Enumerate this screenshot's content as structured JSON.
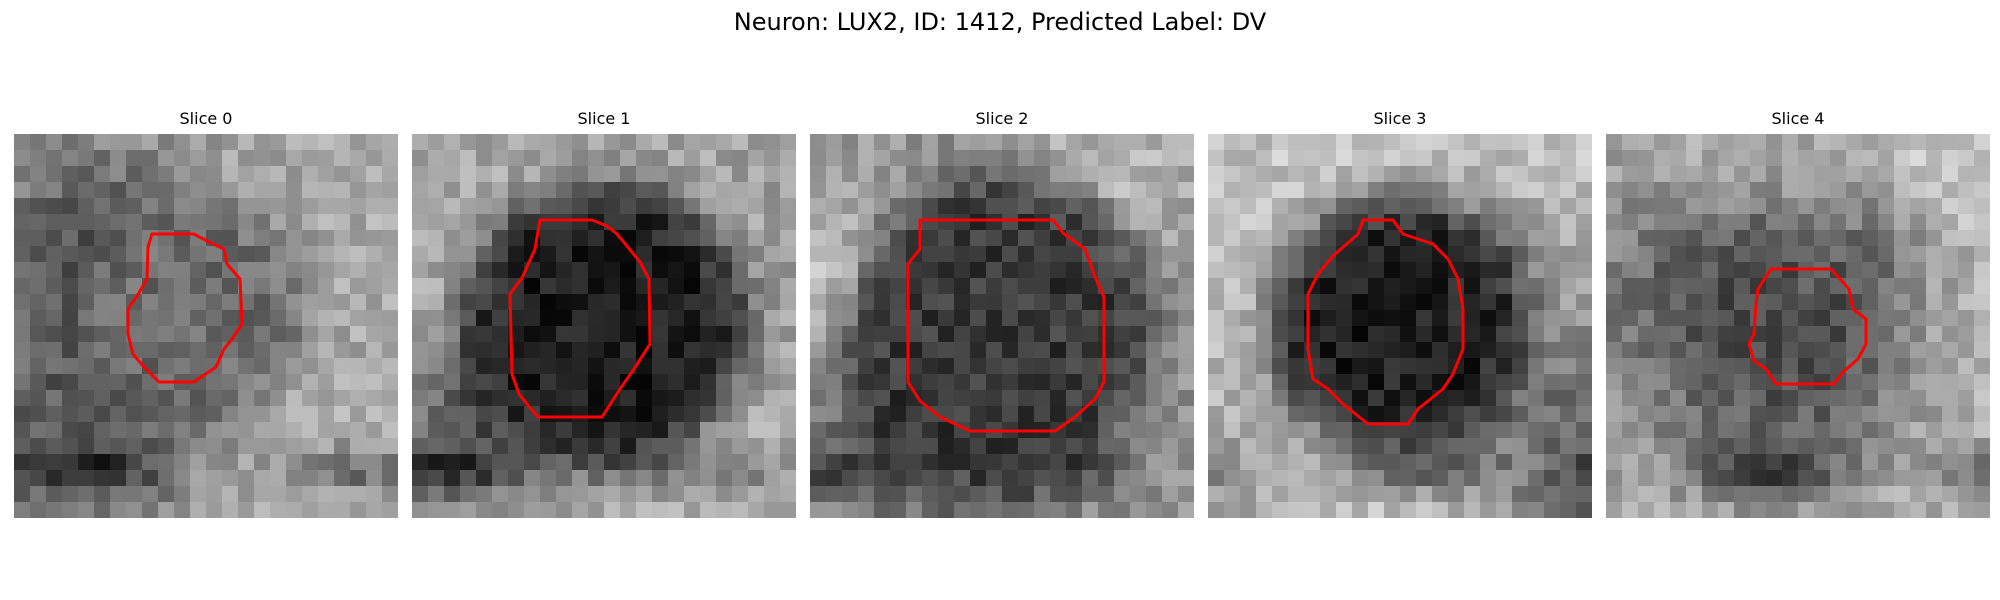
{
  "figure": {
    "title": "Neuron: LUX2, ID: 1412, Predicted Label: DV"
  },
  "contour_color": "#ff0000",
  "panels": [
    {
      "title": "Slice 0",
      "seed": 11,
      "bright_base": 0.66,
      "dark_core": 0.42,
      "core_radius": 7.0,
      "core_cx": 11.0,
      "core_cy": 11.0
    },
    {
      "title": "Slice 1",
      "seed": 23,
      "bright_base": 0.62,
      "dark_core": 0.12,
      "core_radius": 9.0,
      "core_cx": 12.0,
      "core_cy": 12.0
    },
    {
      "title": "Slice 2",
      "seed": 37,
      "bright_base": 0.58,
      "dark_core": 0.22,
      "core_radius": 9.5,
      "core_cx": 12.0,
      "core_cy": 12.0
    },
    {
      "title": "Slice 3",
      "seed": 41,
      "bright_base": 0.76,
      "dark_core": 0.12,
      "core_radius": 8.0,
      "core_cx": 12.0,
      "core_cy": 12.0
    },
    {
      "title": "Slice 4",
      "seed": 53,
      "bright_base": 0.74,
      "dark_core": 0.32,
      "core_radius": 5.5,
      "core_cx": 12.0,
      "core_cy": 12.0
    }
  ]
}
